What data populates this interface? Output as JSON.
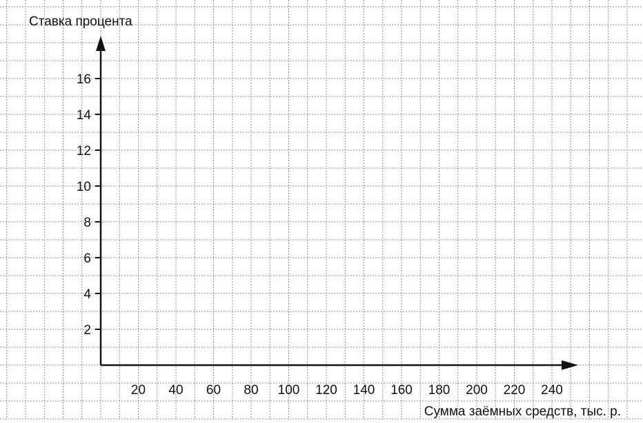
{
  "chart_data": {
    "type": "line",
    "title": "",
    "xlabel": "Сумма заёмных средств, тыс. р.",
    "ylabel": "Ставка процента",
    "x_ticks": [
      20,
      40,
      60,
      80,
      100,
      120,
      140,
      160,
      180,
      200,
      220,
      240
    ],
    "y_ticks": [
      2,
      4,
      6,
      8,
      10,
      12,
      14,
      16
    ],
    "xlim": [
      0,
      250
    ],
    "ylim": [
      0,
      19
    ],
    "grid": true,
    "grid_style": "dotted",
    "series": []
  },
  "colors": {
    "axis": "#111111",
    "grid": "#8c8c8c",
    "background": "#ffffff"
  }
}
